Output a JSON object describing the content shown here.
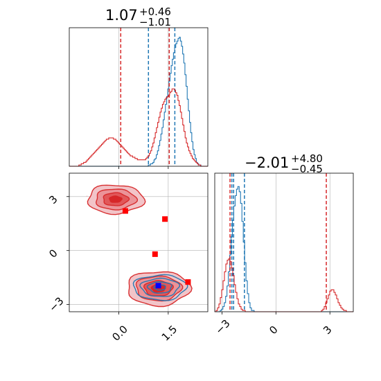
{
  "chart_data": [
    {
      "type": "histogram",
      "panel": "marginal-param-1",
      "title": {
        "median": "1.07",
        "plus": "+0.46",
        "minus": "−1.01"
      },
      "xlim": [
        -1.5,
        2.7
      ],
      "grid": true,
      "series": [
        {
          "color": "#1f77b4",
          "bins_from": -1.5,
          "bins_to": 2.7,
          "heights": [
            0,
            0,
            0,
            0,
            0,
            0,
            0,
            0,
            0,
            0,
            0,
            0,
            0,
            0,
            0,
            0,
            0,
            0,
            0,
            0,
            0,
            0,
            0,
            0,
            0,
            0,
            0,
            0,
            0,
            0,
            0,
            0,
            0,
            0,
            0,
            0,
            0,
            0,
            0,
            0,
            0,
            0,
            0,
            0,
            0,
            0,
            0,
            0,
            0,
            0,
            0,
            0,
            0,
            0,
            0,
            0,
            0,
            0,
            0,
            0,
            0,
            0,
            0,
            0,
            0,
            0,
            0,
            0,
            0,
            0.01,
            0.01,
            0.02,
            0.02,
            0.03,
            0.05,
            0.06,
            0.09,
            0.12,
            0.16,
            0.2,
            0.25,
            0.3,
            0.36,
            0.42,
            0.48,
            0.54,
            0.6,
            0.66,
            0.72,
            0.78,
            0.83,
            0.88,
            0.92,
            0.95,
            0.97,
            0.99,
            1.0,
            0.97,
            0.93,
            0.87,
            0.8,
            0.71,
            0.62,
            0.52,
            0.43,
            0.34,
            0.26,
            0.19,
            0.13,
            0.09,
            0.06,
            0.03,
            0.02,
            0.01,
            0.01,
            0,
            0,
            0,
            0,
            0,
            0
          ],
          "quantiles": [
            0.9,
            1.53,
            1.7
          ]
        },
        {
          "color": "#d62728",
          "bins_from": -1.5,
          "bins_to": 2.7,
          "heights": [
            0,
            0,
            0,
            0,
            0,
            0,
            0,
            0,
            0.01,
            0.01,
            0.02,
            0.02,
            0.03,
            0.03,
            0.04,
            0.05,
            0.06,
            0.07,
            0.08,
            0.09,
            0.1,
            0.11,
            0.12,
            0.13,
            0.14,
            0.15,
            0.16,
            0.17,
            0.18,
            0.19,
            0.2,
            0.21,
            0.21,
            0.22,
            0.22,
            0.22,
            0.22,
            0.21,
            0.21,
            0.2,
            0.19,
            0.18,
            0.17,
            0.16,
            0.15,
            0.14,
            0.13,
            0.12,
            0.11,
            0.1,
            0.09,
            0.08,
            0.08,
            0.07,
            0.07,
            0.06,
            0.06,
            0.05,
            0.05,
            0.05,
            0.05,
            0.05,
            0.05,
            0.05,
            0.06,
            0.07,
            0.08,
            0.1,
            0.12,
            0.15,
            0.18,
            0.22,
            0.26,
            0.3,
            0.34,
            0.38,
            0.42,
            0.45,
            0.48,
            0.5,
            0.52,
            0.53,
            0.54,
            0.55,
            0.57,
            0.58,
            0.6,
            0.6,
            0.59,
            0.57,
            0.55,
            0.51,
            0.47,
            0.42,
            0.37,
            0.32,
            0.27,
            0.22,
            0.18,
            0.15,
            0.12,
            0.1,
            0.08,
            0.06,
            0.05,
            0.04,
            0.03,
            0.02,
            0.01,
            0.01,
            0,
            0,
            0,
            0,
            0,
            0
          ],
          "quantiles": [
            0.06,
            1.53
          ]
        }
      ]
    },
    {
      "type": "histogram",
      "panel": "marginal-param-2",
      "title": {
        "median": "−2.01",
        "plus": "+4.80",
        "minus": "−0.45"
      },
      "xlim": [
        -3.4,
        4.3
      ],
      "xticks": [
        "−3",
        "0",
        "3"
      ],
      "grid": true,
      "series": [
        {
          "color": "#1f77b4",
          "bins_from": -3.4,
          "bins_to": 4.3,
          "heights": [
            0,
            0,
            0,
            0,
            0.01,
            0.02,
            0.04,
            0.07,
            0.12,
            0.2,
            0.31,
            0.44,
            0.58,
            0.71,
            0.82,
            0.9,
            0.95,
            0.97,
            0.93,
            0.84,
            0.7,
            0.54,
            0.38,
            0.24,
            0.14,
            0.07,
            0.03,
            0.01,
            0.01,
            0,
            0,
            0,
            0,
            0,
            0,
            0,
            0,
            0,
            0,
            0,
            0,
            0,
            0,
            0,
            0,
            0,
            0,
            0,
            0,
            0,
            0,
            0,
            0,
            0,
            0,
            0,
            0,
            0,
            0,
            0,
            0,
            0,
            0,
            0,
            0,
            0,
            0,
            0,
            0,
            0,
            0,
            0,
            0,
            0,
            0,
            0,
            0,
            0,
            0,
            0,
            0,
            0,
            0,
            0,
            0,
            0,
            0,
            0,
            0,
            0,
            0,
            0,
            0,
            0,
            0,
            0,
            0,
            0,
            0,
            0,
            0,
            0
          ],
          "quantiles": [
            -2.45,
            -2.35,
            -1.75
          ]
        },
        {
          "color": "#d62728",
          "bins_from": -3.4,
          "bins_to": 4.3,
          "heights": [
            0,
            0.01,
            0.03,
            0.06,
            0.11,
            0.17,
            0.24,
            0.31,
            0.37,
            0.4,
            0.41,
            0.39,
            0.34,
            0.28,
            0.21,
            0.15,
            0.1,
            0.06,
            0.04,
            0.02,
            0.01,
            0.01,
            0,
            0,
            0,
            0,
            0,
            0,
            0,
            0,
            0,
            0,
            0,
            0,
            0,
            0,
            0,
            0,
            0,
            0,
            0,
            0,
            0,
            0,
            0,
            0,
            0,
            0,
            0,
            0,
            0,
            0,
            0,
            0,
            0,
            0,
            0,
            0,
            0,
            0,
            0,
            0,
            0,
            0,
            0,
            0,
            0,
            0,
            0,
            0,
            0,
            0,
            0,
            0,
            0,
            0,
            0,
            0.01,
            0.02,
            0.04,
            0.07,
            0.1,
            0.13,
            0.16,
            0.17,
            0.17,
            0.15,
            0.13,
            0.1,
            0.07,
            0.05,
            0.03,
            0.02,
            0.01,
            0.01,
            0,
            0,
            0,
            0,
            0
          ],
          "quantiles": [
            -2.55,
            2.8
          ]
        }
      ]
    },
    {
      "type": "scatter-contour",
      "panel": "joint-param-1-param-2",
      "xlim": [
        -1.5,
        2.7
      ],
      "ylim": [
        -3.4,
        4.3
      ],
      "xticks": [
        "0.0",
        "1.5"
      ],
      "yticks": [
        "3",
        "0",
        "−3"
      ],
      "grid": true,
      "contours": [
        {
          "color": "#d62728",
          "center": [
            -0.1,
            2.85
          ],
          "spread": [
            0.85,
            0.8
          ]
        },
        {
          "color": "#d62728",
          "center": [
            1.2,
            -2.1
          ],
          "spread": [
            0.95,
            0.95
          ]
        },
        {
          "color": "#1f77b4",
          "center": [
            1.25,
            -2.05
          ],
          "spread": [
            0.8,
            0.7
          ]
        }
      ],
      "markers": [
        {
          "color": "#ff0000",
          "x": 0.2,
          "y": 2.2
        },
        {
          "color": "#ff0000",
          "x": 1.4,
          "y": 1.75
        },
        {
          "color": "#ff0000",
          "x": 1.1,
          "y": -0.2
        },
        {
          "color": "#ff0000",
          "x": 2.1,
          "y": -1.75
        },
        {
          "color": "#0000ff",
          "x": 1.2,
          "y": -1.95
        }
      ]
    }
  ]
}
